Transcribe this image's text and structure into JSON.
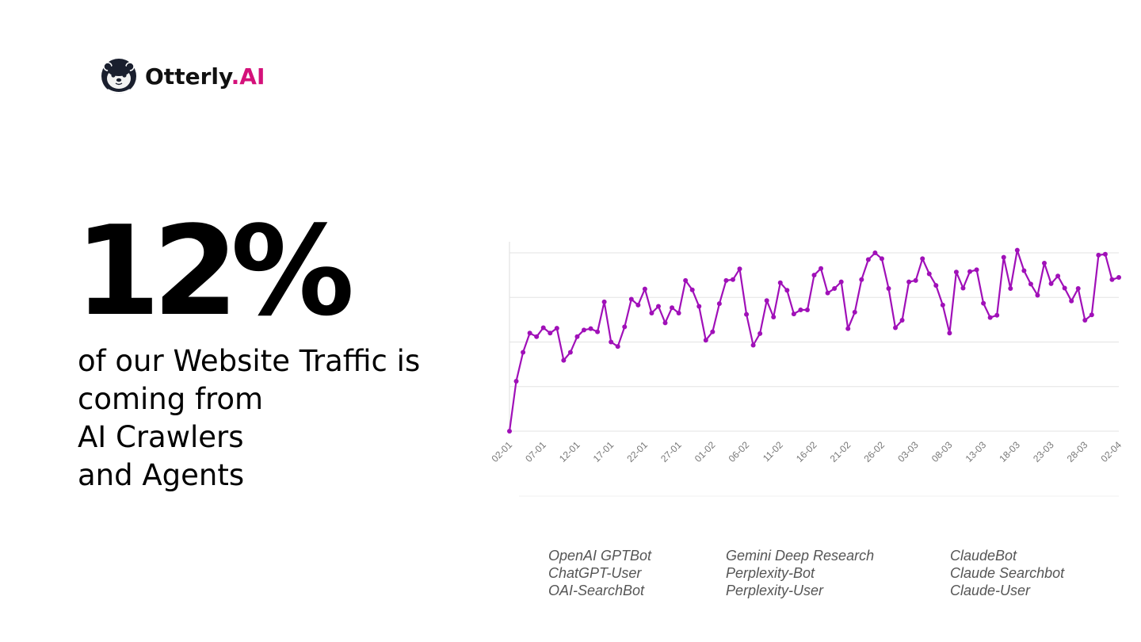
{
  "logo": {
    "otterly": "Otterly",
    "ai": ".AI",
    "brand_color": "#d4117a"
  },
  "stat": {
    "value": "12%"
  },
  "headline": {
    "lines": [
      "of our Website Traffic is",
      "coming from",
      "AI Crawlers",
      "and Agents"
    ]
  },
  "legend": {
    "col1": [
      "OpenAI GPTBot",
      "ChatGPT-User",
      "OAI-SearchBot"
    ],
    "col2": [
      "Gemini Deep Research",
      "Perplexity-Bot",
      "Perplexity-User"
    ],
    "col3": [
      "ClaudeBot",
      "Claude Searchbot",
      "Claude-User"
    ]
  },
  "chart_data": {
    "type": "line",
    "color": "#a010b8",
    "grid": true,
    "ylim": [
      0,
      4.25
    ],
    "tick_labels": [
      "02-01",
      "07-01",
      "12-01",
      "17-01",
      "22-01",
      "27-01",
      "01-02",
      "06-02",
      "11-02",
      "16-02",
      "21-02",
      "26-02",
      "03-03",
      "08-03",
      "13-03",
      "18-03",
      "23-03",
      "28-03",
      "02-04"
    ],
    "tick_interval_days": 5,
    "values": [
      0,
      1.12,
      1.77,
      2.2,
      2.12,
      2.32,
      2.2,
      2.31,
      1.59,
      1.77,
      2.12,
      2.27,
      2.3,
      2.23,
      2.9,
      2.0,
      1.9,
      2.34,
      2.96,
      2.83,
      3.19,
      2.65,
      2.8,
      2.43,
      2.77,
      2.65,
      3.38,
      3.17,
      2.8,
      2.04,
      2.23,
      2.86,
      3.38,
      3.4,
      3.64,
      2.62,
      1.93,
      2.19,
      2.93,
      2.56,
      3.33,
      3.16,
      2.63,
      2.72,
      2.72,
      3.5,
      3.65,
      3.1,
      3.2,
      3.35,
      2.3,
      2.67,
      3.4,
      3.85,
      4.0,
      3.87,
      3.2,
      2.32,
      2.49,
      3.35,
      3.38,
      3.87,
      3.53,
      3.27,
      2.83,
      2.2,
      3.57,
      3.21,
      3.58,
      3.62,
      2.87,
      2.55,
      2.6,
      3.9,
      3.2,
      4.06,
      3.6,
      3.3,
      3.05,
      3.77,
      3.31,
      3.48,
      3.21,
      2.92,
      3.2,
      2.49,
      2.61,
      3.95,
      3.97,
      3.4,
      3.45
    ]
  }
}
